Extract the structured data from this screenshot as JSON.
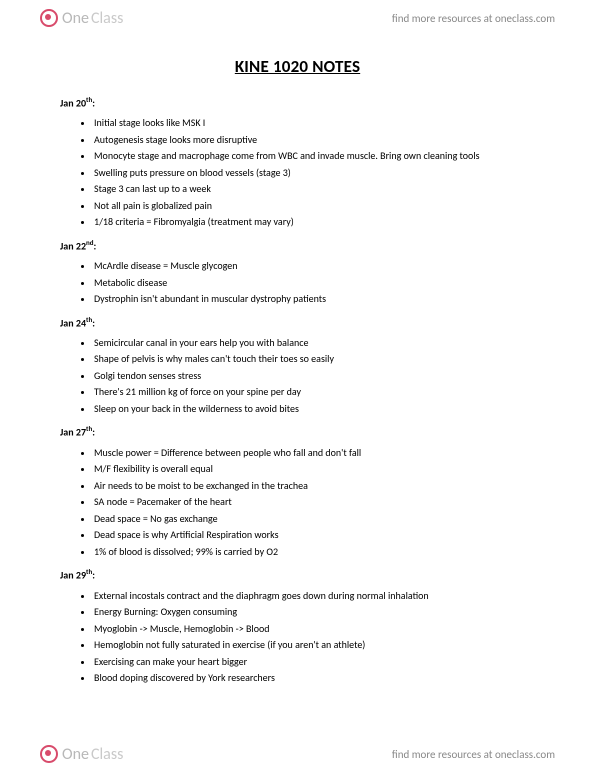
{
  "brand": {
    "logo_one": "One",
    "logo_class": "Class",
    "tagline": "find more resources at oneclass.com"
  },
  "title": "KINE 1020 NOTES",
  "sections": [
    {
      "date_main": "Jan 20",
      "date_sup": "th",
      "items": [
        "Initial stage looks like MSK I",
        "Autogenesis stage looks more disruptive",
        "Monocyte stage and macrophage come from WBC and invade muscle. Bring own cleaning tools",
        "Swelling puts pressure on blood vessels (stage 3)",
        "Stage 3 can last up to a week",
        "Not all pain is globalized pain",
        "1/18 criteria = Fibromyalgia (treatment may vary)"
      ]
    },
    {
      "date_main": "Jan 22",
      "date_sup": "nd",
      "items": [
        "McArdle disease = Muscle glycogen",
        "Metabolic disease",
        "Dystrophin isn't abundant in muscular dystrophy patients"
      ]
    },
    {
      "date_main": "Jan 24",
      "date_sup": "th",
      "items": [
        "Semicircular canal in your ears help you with balance",
        "Shape of pelvis is why males can't touch their toes so easily",
        "Golgi tendon senses stress",
        "There's 21 million kg of force on your spine per day",
        "Sleep on your back in the wilderness to avoid bites"
      ]
    },
    {
      "date_main": "Jan 27",
      "date_sup": "th",
      "items": [
        "Muscle power = Difference between people who fall and don't fall",
        "M/F flexibility is overall equal",
        "Air needs to be moist to be exchanged in the trachea",
        "SA node = Pacemaker of the heart",
        "Dead space = No gas exchange",
        "Dead space is why Artificial Respiration works",
        "1% of blood is dissolved; 99% is carried by O2"
      ]
    },
    {
      "date_main": "Jan 29",
      "date_sup": "th",
      "items": [
        "External incostals contract and the diaphragm goes down during normal inhalation",
        "Energy Burning: Oxygen consuming",
        "Myoglobin -> Muscle, Hemoglobin -> Blood",
        "Hemoglobin not fully saturated in exercise (if you aren't an athlete)",
        "Exercising can make your heart bigger",
        "Blood doping discovered by York researchers"
      ]
    }
  ]
}
